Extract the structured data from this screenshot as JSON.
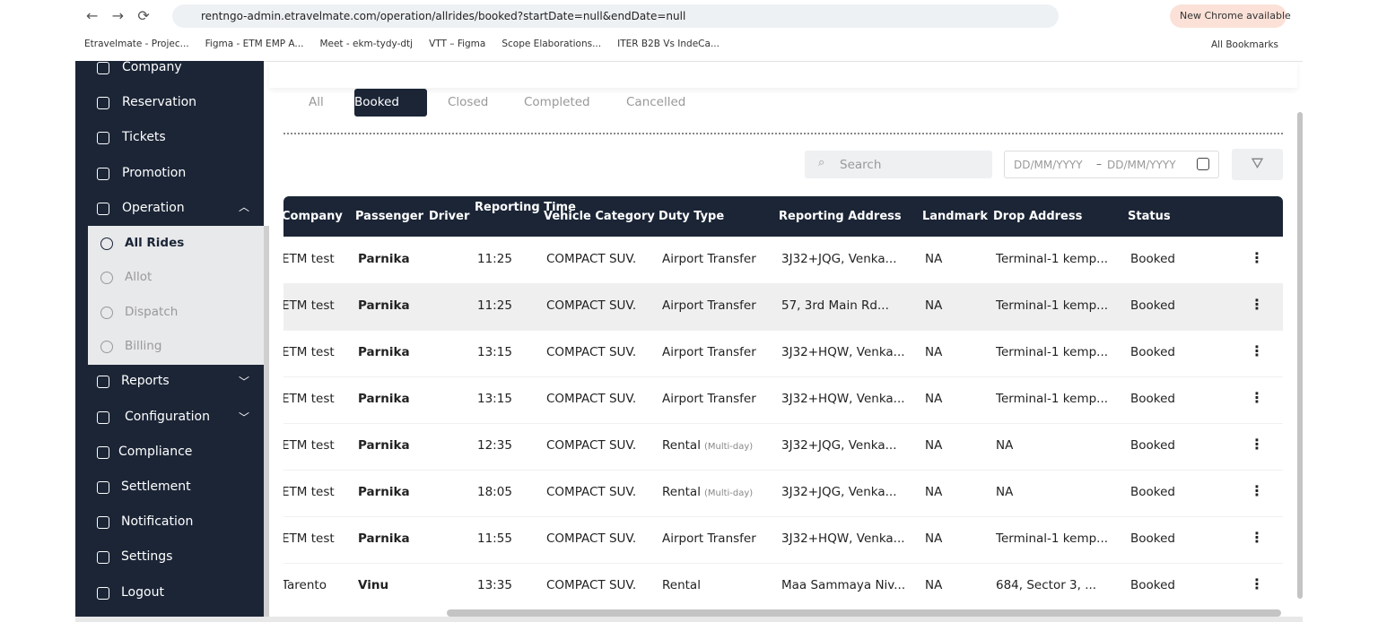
{
  "browser": {
    "url": "rentngo-admin.etravelmate.com/operation/allrides/booked?startDate=null&endDate=null",
    "update": "New Chrome available",
    "bookmarks": [
      "Etravelmate - Projec...",
      "Figma - ETM EMP A...",
      "Meet - ekm-tydy-dtj",
      "VTT – Figma",
      "Scope Elaborations...",
      "ITER B2B Vs IndeCa..."
    ],
    "all_bookmarks": "All Bookmarks"
  },
  "sidebar": {
    "items_top": [
      "Company",
      "Reservation",
      "Tickets",
      "Promotion",
      "Operation"
    ],
    "submenu": [
      "All Rides",
      "Allot",
      "Dispatch",
      "Billing"
    ],
    "items_bottom": [
      "Reports",
      "Configuration",
      "Compliance",
      "Settlement",
      "Notification",
      "Settings",
      "Logout"
    ]
  },
  "tabs": [
    "All",
    "Booked",
    "Closed",
    "Completed",
    "Cancelled"
  ],
  "active_tab": 1,
  "search": "Search",
  "date_from": "DD/MM/YYYY",
  "date_sep": "–",
  "date_to": "DD/MM/YYYY",
  "table": {
    "headers": [
      "Company",
      "Passenger",
      "Driver",
      "Reporting Time",
      "Vehicle Category",
      "Duty Type",
      "Reporting Address",
      "Landmark",
      "Drop Address",
      "Status"
    ],
    "rows": [
      {
        "company": "ETM test",
        "passenger": "Parnika",
        "time": "11:25",
        "vehicle": "COMPACT SUV.",
        "duty": "Airport Transfer",
        "address": "3J32+JQG, Venka...",
        "landmark": "NA",
        "drop": "Terminal-1 kemp...",
        "status": "Booked"
      },
      {
        "company": "ETM test",
        "passenger": "Parnika",
        "time": "11:25",
        "vehicle": "COMPACT SUV.",
        "duty": "Airport Transfer",
        "address": "57, 3rd Main Rd...",
        "landmark": "NA",
        "drop": "Terminal-1 kemp...",
        "status": "Booked"
      },
      {
        "company": "ETM test",
        "passenger": "Parnika",
        "time": "13:15",
        "vehicle": "COMPACT SUV.",
        "duty": "Airport Transfer",
        "address": "3J32+HQW, Venka...",
        "landmark": "NA",
        "drop": "Terminal-1 kemp...",
        "status": "Booked"
      },
      {
        "company": "ETM test",
        "passenger": "Parnika",
        "time": "13:15",
        "vehicle": "COMPACT SUV.",
        "duty": "Airport Transfer",
        "address": "3J32+HQW, Venka...",
        "landmark": "NA",
        "drop": "Terminal-1 kemp...",
        "status": "Booked"
      },
      {
        "company": "ETM test",
        "passenger": "Parnika",
        "time": "12:35",
        "vehicle": "COMPACT SUV.",
        "duty": "Rental",
        "duty_note": "(Multi-day)",
        "address": "3J32+JQG, Venka...",
        "landmark": "NA",
        "drop": "NA",
        "status": "Booked"
      },
      {
        "company": "ETM test",
        "passenger": "Parnika",
        "time": "18:05",
        "vehicle": "COMPACT SUV.",
        "duty": "Rental",
        "duty_note": "(Multi-day)",
        "address": "3J32+JQG, Venka...",
        "landmark": "NA",
        "drop": "NA",
        "status": "Booked"
      },
      {
        "company": "ETM test",
        "passenger": "Parnika",
        "time": "11:55",
        "vehicle": "COMPACT SUV.",
        "duty": "Airport Transfer",
        "address": "3J32+HQW, Venka...",
        "landmark": "NA",
        "drop": "Terminal-1 kemp...",
        "status": "Booked"
      },
      {
        "company": "Tarento",
        "passenger": "Vinu",
        "time": "13:35",
        "vehicle": "COMPACT SUV.",
        "duty": "Rental",
        "address": "Maa Sammaya Niv...",
        "landmark": "NA",
        "drop": "684, Sector 3, ...",
        "status": "Booked"
      }
    ]
  }
}
